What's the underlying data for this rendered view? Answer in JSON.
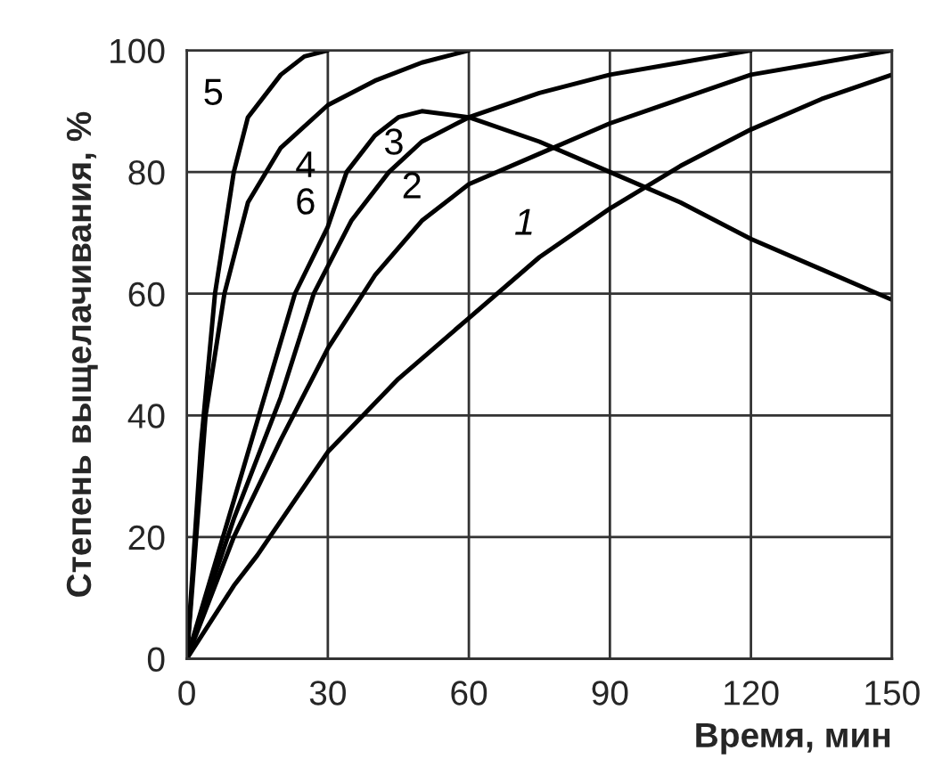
{
  "chart_data": {
    "type": "line",
    "xlabel": "Время, мин",
    "ylabel": "Степень выщелачивания, %",
    "xlim": [
      0,
      150
    ],
    "xticks": [
      0,
      30,
      60,
      90,
      120,
      150
    ],
    "ylim": [
      0,
      100
    ],
    "yticks": [
      0,
      20,
      40,
      60,
      80,
      100
    ],
    "grid": true,
    "legend": false,
    "series": [
      {
        "name": "1",
        "color": "#000000",
        "x": [
          0,
          10,
          15,
          30,
          45,
          60,
          75,
          90,
          105,
          120,
          135,
          150
        ],
        "values": [
          0,
          12,
          17,
          34,
          46,
          56,
          66,
          74,
          81,
          87,
          92,
          96
        ]
      },
      {
        "name": "2",
        "color": "#000000",
        "x": [
          0,
          10,
          20,
          30,
          40,
          50,
          60,
          75,
          90,
          105,
          120,
          135,
          150
        ],
        "values": [
          0,
          20,
          36,
          51,
          63,
          72,
          78,
          83,
          88,
          92,
          96,
          98,
          100
        ]
      },
      {
        "name": "3",
        "color": "#000000",
        "x": [
          0,
          10,
          20,
          27,
          35,
          43,
          50,
          60,
          75,
          90,
          105,
          120
        ],
        "values": [
          0,
          23,
          43,
          60,
          72,
          80,
          85,
          89,
          93,
          96,
          98,
          100
        ]
      },
      {
        "name": "4",
        "color": "#000000",
        "x": [
          0,
          4,
          8,
          13,
          20,
          30,
          40,
          50,
          60
        ],
        "values": [
          0,
          40,
          60,
          75,
          84,
          91,
          95,
          98,
          100
        ]
      },
      {
        "name": "5",
        "color": "#000000",
        "x": [
          0,
          3,
          6,
          10,
          13,
          20,
          25,
          30
        ],
        "values": [
          0,
          35,
          60,
          80,
          89,
          96,
          99,
          100
        ]
      },
      {
        "name": "6",
        "color": "#000000",
        "x": [
          0,
          10,
          23,
          30,
          34,
          40,
          45,
          50,
          60,
          75,
          90,
          105,
          120,
          135,
          150
        ],
        "values": [
          0,
          26,
          60,
          71,
          80,
          86,
          89,
          90,
          89,
          85,
          80,
          75,
          69,
          64,
          59
        ]
      }
    ]
  }
}
